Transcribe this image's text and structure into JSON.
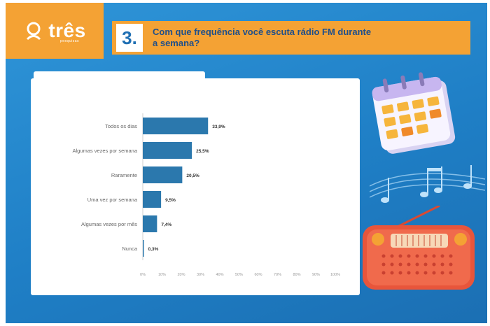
{
  "header": {
    "logo_text": "três",
    "logo_sub": "pesquisas",
    "question_number": "3.",
    "question_text": "Com que frequência você escuta rádio FM durante a semana?"
  },
  "colors": {
    "background": "#2385cc",
    "accent_orange": "#f4a234",
    "bar": "#2b78ad"
  },
  "chart_data": {
    "type": "bar",
    "orientation": "horizontal",
    "categories": [
      "Todos os dias",
      "Algumas vezes por semana",
      "Raramente",
      "Uma vez por semana",
      "Algumas vezes por mês",
      "Nunca"
    ],
    "values": [
      33.9,
      25.5,
      20.5,
      9.5,
      7.4,
      0.3
    ],
    "value_labels": [
      "33,9%",
      "25,5%",
      "20,5%",
      "9,5%",
      "7,4%",
      "0,3%"
    ],
    "xlim": [
      0,
      100
    ],
    "x_ticks": [
      "0%",
      "10%",
      "20%",
      "30%",
      "40%",
      "50%",
      "60%",
      "70%",
      "80%",
      "90%",
      "100%"
    ],
    "grid": false,
    "legend": "none"
  },
  "icons": [
    "logo-icon",
    "calendar-icon",
    "music-notes-icon",
    "radio-icon"
  ]
}
